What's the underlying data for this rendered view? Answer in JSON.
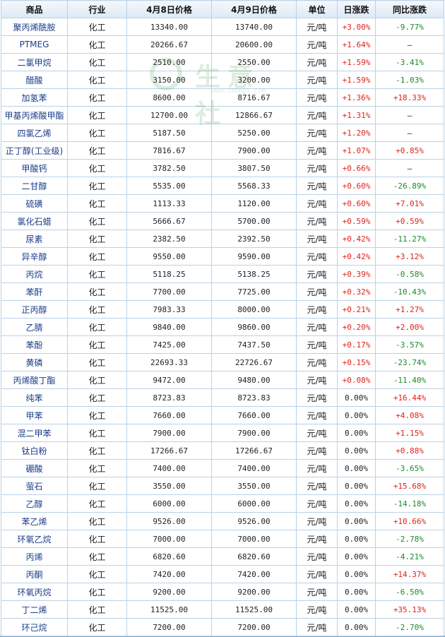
{
  "headers": [
    "商品",
    "行业",
    "4月8日价格",
    "4月9日价格",
    "单位",
    "日涨跌",
    "同比涨跌"
  ],
  "watermark": {
    "text": "生意社",
    "url": "www.100ppi.com"
  },
  "colors": {
    "up": "#e0221b",
    "down": "#1b8a28",
    "header_bg": "#dde9f4",
    "name": "#1a3d8a",
    "border": "#b9d2e6"
  },
  "rows": [
    {
      "name": "聚丙烯酰胺",
      "industry": "化工",
      "apr8": "13340.00",
      "apr9": "13740.00",
      "unit": "元/吨",
      "day": "+3.00%",
      "yoy": "-9.77%"
    },
    {
      "name": "PTMEG",
      "industry": "化工",
      "apr8": "20266.67",
      "apr9": "20600.00",
      "unit": "元/吨",
      "day": "+1.64%",
      "yoy": "—"
    },
    {
      "name": "二氯甲烷",
      "industry": "化工",
      "apr8": "2510.00",
      "apr9": "2550.00",
      "unit": "元/吨",
      "day": "+1.59%",
      "yoy": "-3.41%"
    },
    {
      "name": "醋酸",
      "industry": "化工",
      "apr8": "3150.00",
      "apr9": "3200.00",
      "unit": "元/吨",
      "day": "+1.59%",
      "yoy": "-1.03%"
    },
    {
      "name": "加氢苯",
      "industry": "化工",
      "apr8": "8600.00",
      "apr9": "8716.67",
      "unit": "元/吨",
      "day": "+1.36%",
      "yoy": "+18.33%"
    },
    {
      "name": "甲基丙烯酸甲酯",
      "industry": "化工",
      "apr8": "12700.00",
      "apr9": "12866.67",
      "unit": "元/吨",
      "day": "+1.31%",
      "yoy": "—"
    },
    {
      "name": "四氯乙烯",
      "industry": "化工",
      "apr8": "5187.50",
      "apr9": "5250.00",
      "unit": "元/吨",
      "day": "+1.20%",
      "yoy": "—"
    },
    {
      "name": "正丁醇(工业级)",
      "industry": "化工",
      "apr8": "7816.67",
      "apr9": "7900.00",
      "unit": "元/吨",
      "day": "+1.07%",
      "yoy": "+0.85%"
    },
    {
      "name": "甲酸钙",
      "industry": "化工",
      "apr8": "3782.50",
      "apr9": "3807.50",
      "unit": "元/吨",
      "day": "+0.66%",
      "yoy": "—"
    },
    {
      "name": "二甘醇",
      "industry": "化工",
      "apr8": "5535.00",
      "apr9": "5568.33",
      "unit": "元/吨",
      "day": "+0.60%",
      "yoy": "-26.89%"
    },
    {
      "name": "硫磺",
      "industry": "化工",
      "apr8": "1113.33",
      "apr9": "1120.00",
      "unit": "元/吨",
      "day": "+0.60%",
      "yoy": "+7.01%"
    },
    {
      "name": "氯化石蜡",
      "industry": "化工",
      "apr8": "5666.67",
      "apr9": "5700.00",
      "unit": "元/吨",
      "day": "+0.59%",
      "yoy": "+0.59%"
    },
    {
      "name": "尿素",
      "industry": "化工",
      "apr8": "2382.50",
      "apr9": "2392.50",
      "unit": "元/吨",
      "day": "+0.42%",
      "yoy": "-11.27%"
    },
    {
      "name": "异辛醇",
      "industry": "化工",
      "apr8": "9550.00",
      "apr9": "9590.00",
      "unit": "元/吨",
      "day": "+0.42%",
      "yoy": "+3.12%"
    },
    {
      "name": "丙烷",
      "industry": "化工",
      "apr8": "5118.25",
      "apr9": "5138.25",
      "unit": "元/吨",
      "day": "+0.39%",
      "yoy": "-0.58%"
    },
    {
      "name": "苯酐",
      "industry": "化工",
      "apr8": "7700.00",
      "apr9": "7725.00",
      "unit": "元/吨",
      "day": "+0.32%",
      "yoy": "-10.43%"
    },
    {
      "name": "正丙醇",
      "industry": "化工",
      "apr8": "7983.33",
      "apr9": "8000.00",
      "unit": "元/吨",
      "day": "+0.21%",
      "yoy": "+1.27%"
    },
    {
      "name": "乙腈",
      "industry": "化工",
      "apr8": "9840.00",
      "apr9": "9860.00",
      "unit": "元/吨",
      "day": "+0.20%",
      "yoy": "+2.00%"
    },
    {
      "name": "苯酚",
      "industry": "化工",
      "apr8": "7425.00",
      "apr9": "7437.50",
      "unit": "元/吨",
      "day": "+0.17%",
      "yoy": "-3.57%"
    },
    {
      "name": "黄磷",
      "industry": "化工",
      "apr8": "22693.33",
      "apr9": "22726.67",
      "unit": "元/吨",
      "day": "+0.15%",
      "yoy": "-23.74%"
    },
    {
      "name": "丙烯酸丁酯",
      "industry": "化工",
      "apr8": "9472.00",
      "apr9": "9480.00",
      "unit": "元/吨",
      "day": "+0.08%",
      "yoy": "-11.40%"
    },
    {
      "name": "纯苯",
      "industry": "化工",
      "apr8": "8723.83",
      "apr9": "8723.83",
      "unit": "元/吨",
      "day": "0.00%",
      "yoy": "+16.44%"
    },
    {
      "name": "甲苯",
      "industry": "化工",
      "apr8": "7660.00",
      "apr9": "7660.00",
      "unit": "元/吨",
      "day": "0.00%",
      "yoy": "+4.08%"
    },
    {
      "name": "混二甲苯",
      "industry": "化工",
      "apr8": "7900.00",
      "apr9": "7900.00",
      "unit": "元/吨",
      "day": "0.00%",
      "yoy": "+1.15%"
    },
    {
      "name": "钛白粉",
      "industry": "化工",
      "apr8": "17266.67",
      "apr9": "17266.67",
      "unit": "元/吨",
      "day": "0.00%",
      "yoy": "+0.88%"
    },
    {
      "name": "硼酸",
      "industry": "化工",
      "apr8": "7400.00",
      "apr9": "7400.00",
      "unit": "元/吨",
      "day": "0.00%",
      "yoy": "-3.65%"
    },
    {
      "name": "萤石",
      "industry": "化工",
      "apr8": "3550.00",
      "apr9": "3550.00",
      "unit": "元/吨",
      "day": "0.00%",
      "yoy": "+15.68%"
    },
    {
      "name": "乙醇",
      "industry": "化工",
      "apr8": "6000.00",
      "apr9": "6000.00",
      "unit": "元/吨",
      "day": "0.00%",
      "yoy": "-14.18%"
    },
    {
      "name": "苯乙烯",
      "industry": "化工",
      "apr8": "9526.00",
      "apr9": "9526.00",
      "unit": "元/吨",
      "day": "0.00%",
      "yoy": "+10.66%"
    },
    {
      "name": "环氧乙烷",
      "industry": "化工",
      "apr8": "7000.00",
      "apr9": "7000.00",
      "unit": "元/吨",
      "day": "0.00%",
      "yoy": "-2.78%"
    },
    {
      "name": "丙烯",
      "industry": "化工",
      "apr8": "6820.60",
      "apr9": "6820.60",
      "unit": "元/吨",
      "day": "0.00%",
      "yoy": "-4.21%"
    },
    {
      "name": "丙酮",
      "industry": "化工",
      "apr8": "7420.00",
      "apr9": "7420.00",
      "unit": "元/吨",
      "day": "0.00%",
      "yoy": "+14.37%"
    },
    {
      "name": "环氧丙烷",
      "industry": "化工",
      "apr8": "9200.00",
      "apr9": "9200.00",
      "unit": "元/吨",
      "day": "0.00%",
      "yoy": "-6.50%"
    },
    {
      "name": "丁二烯",
      "industry": "化工",
      "apr8": "11525.00",
      "apr9": "11525.00",
      "unit": "元/吨",
      "day": "0.00%",
      "yoy": "+35.13%"
    },
    {
      "name": "环己烷",
      "industry": "化工",
      "apr8": "7200.00",
      "apr9": "7200.00",
      "unit": "元/吨",
      "day": "0.00%",
      "yoy": "-2.70%"
    }
  ]
}
